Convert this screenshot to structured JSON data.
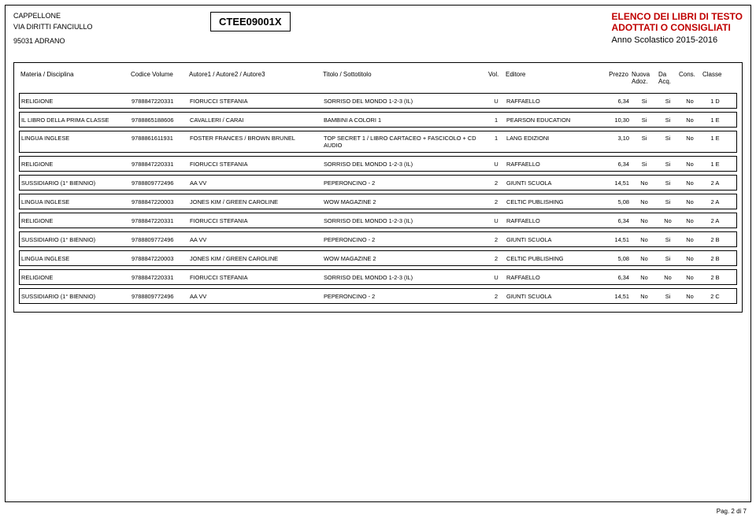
{
  "header": {
    "school_name": "CAPPELLONE",
    "school_addr": "VIA DIRITTI FANCIULLO",
    "school_city": "95031   ADRANO",
    "code": "CTEE09001X",
    "title_line1": "ELENCO DEI LIBRI DI TESTO",
    "title_line2": "ADOTTATI O CONSIGLIATI",
    "sub_line": "Anno Scolastico 2015-2016"
  },
  "columns": {
    "materia": "Materia / Disciplina",
    "codice": "Codice Volume",
    "autore": "Autore1 / Autore2 / Autore3",
    "titolo": "Titolo / Sottotitolo",
    "vol": "Vol.",
    "editore": "Editore",
    "prezzo": "Prezzo",
    "nuova1": "Nuova",
    "nuova2": "Adoz.",
    "da1": "Da",
    "da2": "Acq.",
    "cons": "Cons.",
    "classe": "Classe"
  },
  "rows": [
    {
      "materia": "RELIGIONE",
      "codice": "9788847220331",
      "autore": "FIORUCCI STEFANIA",
      "titolo": "SORRISO DEL MONDO 1-2-3 (IL)",
      "vol": "U",
      "editore": "RAFFAELLO",
      "prezzo": "6,34",
      "nuova": "Si",
      "da": "Si",
      "cons": "No",
      "classe": "1 D",
      "tall": false
    },
    {
      "materia": "IL LIBRO DELLA PRIMA CLASSE",
      "codice": "9788865188606",
      "autore": "CAVALLERI / CARAI",
      "titolo": "BAMBINI A COLORI 1",
      "vol": "1",
      "editore": "PEARSON EDUCATION",
      "prezzo": "10,30",
      "nuova": "Si",
      "da": "Si",
      "cons": "No",
      "classe": "1 E",
      "tall": false
    },
    {
      "materia": "LINGUA INGLESE",
      "codice": "9788861611931",
      "autore": "FOSTER FRANCES / BROWN BRUNEL",
      "titolo": "TOP SECRET 1 / LIBRO CARTACEO + FASCICOLO + CD AUDIO",
      "vol": "1",
      "editore": "LANG EDIZIONI",
      "prezzo": "3,10",
      "nuova": "Si",
      "da": "Si",
      "cons": "No",
      "classe": "1 E",
      "tall": true
    },
    {
      "materia": "RELIGIONE",
      "codice": "9788847220331",
      "autore": "FIORUCCI STEFANIA",
      "titolo": "SORRISO DEL MONDO 1-2-3 (IL)",
      "vol": "U",
      "editore": "RAFFAELLO",
      "prezzo": "6,34",
      "nuova": "Si",
      "da": "Si",
      "cons": "No",
      "classe": "1 E",
      "tall": false
    },
    {
      "materia": "SUSSIDIARIO (1° BIENNIO)",
      "codice": "9788809772496",
      "autore": "AA VV",
      "titolo": "PEPERONCINO - 2",
      "vol": "2",
      "editore": "GIUNTI SCUOLA",
      "prezzo": "14,51",
      "nuova": "No",
      "da": "Si",
      "cons": "No",
      "classe": "2 A",
      "tall": false
    },
    {
      "materia": "LINGUA INGLESE",
      "codice": "9788847220003",
      "autore": "JONES KIM / GREEN CAROLINE",
      "titolo": "WOW MAGAZINE 2",
      "vol": "2",
      "editore": "CELTIC PUBLISHING",
      "prezzo": "5,08",
      "nuova": "No",
      "da": "Si",
      "cons": "No",
      "classe": "2 A",
      "tall": false
    },
    {
      "materia": "RELIGIONE",
      "codice": "9788847220331",
      "autore": "FIORUCCI STEFANIA",
      "titolo": "SORRISO DEL MONDO 1-2-3 (IL)",
      "vol": "U",
      "editore": "RAFFAELLO",
      "prezzo": "6,34",
      "nuova": "No",
      "da": "No",
      "cons": "No",
      "classe": "2 A",
      "tall": false
    },
    {
      "materia": "SUSSIDIARIO (1° BIENNIO)",
      "codice": "9788809772496",
      "autore": "AA VV",
      "titolo": "PEPERONCINO - 2",
      "vol": "2",
      "editore": "GIUNTI SCUOLA",
      "prezzo": "14,51",
      "nuova": "No",
      "da": "Si",
      "cons": "No",
      "classe": "2 B",
      "tall": false
    },
    {
      "materia": "LINGUA INGLESE",
      "codice": "9788847220003",
      "autore": "JONES KIM / GREEN CAROLINE",
      "titolo": "WOW MAGAZINE 2",
      "vol": "2",
      "editore": "CELTIC PUBLISHING",
      "prezzo": "5,08",
      "nuova": "No",
      "da": "Si",
      "cons": "No",
      "classe": "2 B",
      "tall": false
    },
    {
      "materia": "RELIGIONE",
      "codice": "9788847220331",
      "autore": "FIORUCCI STEFANIA",
      "titolo": "SORRISO DEL MONDO 1-2-3 (IL)",
      "vol": "U",
      "editore": "RAFFAELLO",
      "prezzo": "6,34",
      "nuova": "No",
      "da": "No",
      "cons": "No",
      "classe": "2 B",
      "tall": false
    },
    {
      "materia": "SUSSIDIARIO (1° BIENNIO)",
      "codice": "9788809772496",
      "autore": "AA VV",
      "titolo": "PEPERONCINO - 2",
      "vol": "2",
      "editore": "GIUNTI SCUOLA",
      "prezzo": "14,51",
      "nuova": "No",
      "da": "Si",
      "cons": "No",
      "classe": "2 C",
      "tall": false
    }
  ],
  "footer": "Pag. 2 di 7"
}
